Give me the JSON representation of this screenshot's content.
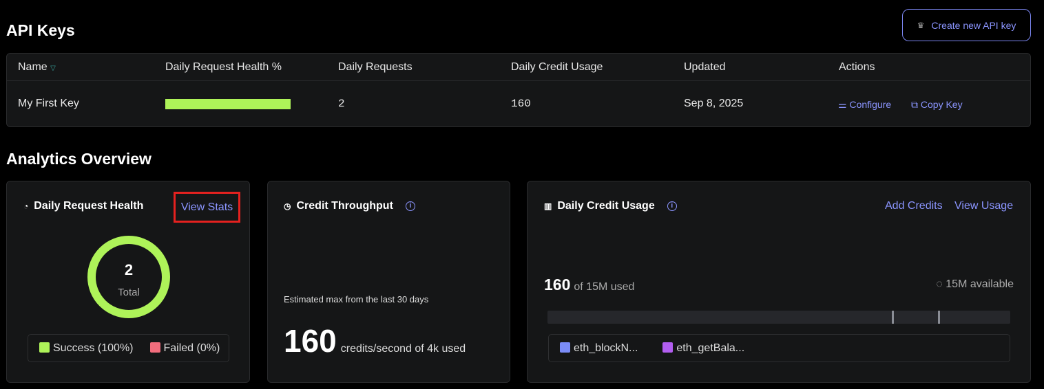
{
  "header": {
    "title": "API Keys",
    "create_button": "Create new API key"
  },
  "table": {
    "columns": [
      "Name",
      "Daily Request Health %",
      "Daily Requests",
      "Daily Credit Usage",
      "Updated",
      "Actions"
    ],
    "rows": [
      {
        "name": "My First Key",
        "health_percent": 100,
        "requests": "2",
        "credit_usage": "160",
        "updated": "Sep 8, 2025",
        "configure": "Configure",
        "copy": "Copy Key"
      }
    ]
  },
  "analytics": {
    "title": "Analytics Overview",
    "health": {
      "title": "Daily Request Health",
      "view_stats": "View Stats",
      "total": "2",
      "total_label": "Total",
      "success": "Success (100%)",
      "failed": "Failed (0%)",
      "success_color": "#aef359",
      "failed_color": "#f26d7d"
    },
    "throughput": {
      "title": "Credit Throughput",
      "caption": "Estimated max from the last 30 days",
      "value": "160",
      "unit": "credits/second of 4k used"
    },
    "usage": {
      "title": "Daily Credit Usage",
      "add_credits": "Add Credits",
      "view_usage": "View Usage",
      "used": "160",
      "of_label": "of 15M used",
      "available": "15M available",
      "methods": [
        {
          "name": "eth_blockN...",
          "color": "#7b8cf7"
        },
        {
          "name": "eth_getBala...",
          "color": "#b25ef0"
        }
      ]
    }
  },
  "colors": {
    "accent": "#8b95ff",
    "highlight": "#e4211f"
  }
}
